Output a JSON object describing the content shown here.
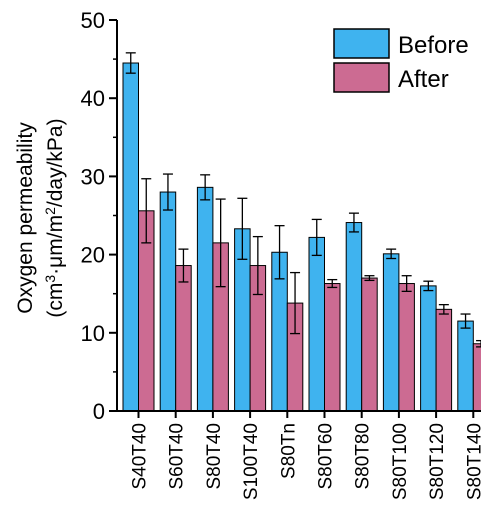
{
  "chart_data": {
    "type": "bar",
    "title": "",
    "xlabel": "",
    "ylabel_line1": "Oxygen permeability",
    "ylabel_line2_prefix": "(cm",
    "ylabel_line2_sup1": "3",
    "ylabel_line2_mid": "·μm/m",
    "ylabel_line2_sup2": "2",
    "ylabel_line2_suffix": "/day/kPa)",
    "ylim": [
      0,
      50
    ],
    "yticks": [
      "0",
      "10",
      "20",
      "30",
      "40",
      "50"
    ],
    "grid": false,
    "legend_position": "top-right",
    "categories": [
      "S40T40",
      "S60T40",
      "S80T40",
      "S100T40",
      "S80Tn",
      "S80T60",
      "S80T80",
      "S80T100",
      "S80T120",
      "S80T140"
    ],
    "series": [
      {
        "name": "Before",
        "color": "#3fb3ef",
        "values": [
          44.5,
          28.0,
          28.6,
          23.3,
          20.3,
          22.2,
          24.1,
          20.1,
          16.0,
          11.5
        ],
        "errors": [
          1.3,
          2.3,
          1.6,
          3.9,
          3.4,
          2.3,
          1.2,
          0.6,
          0.6,
          0.9
        ]
      },
      {
        "name": "After",
        "color": "#cc6b92",
        "values": [
          25.6,
          18.6,
          21.5,
          18.6,
          13.8,
          16.3,
          17.0,
          16.3,
          13.0,
          8.6
        ],
        "errors": [
          4.1,
          2.1,
          5.6,
          3.7,
          3.9,
          0.5,
          0.3,
          1.0,
          0.6,
          0.4
        ]
      }
    ]
  }
}
